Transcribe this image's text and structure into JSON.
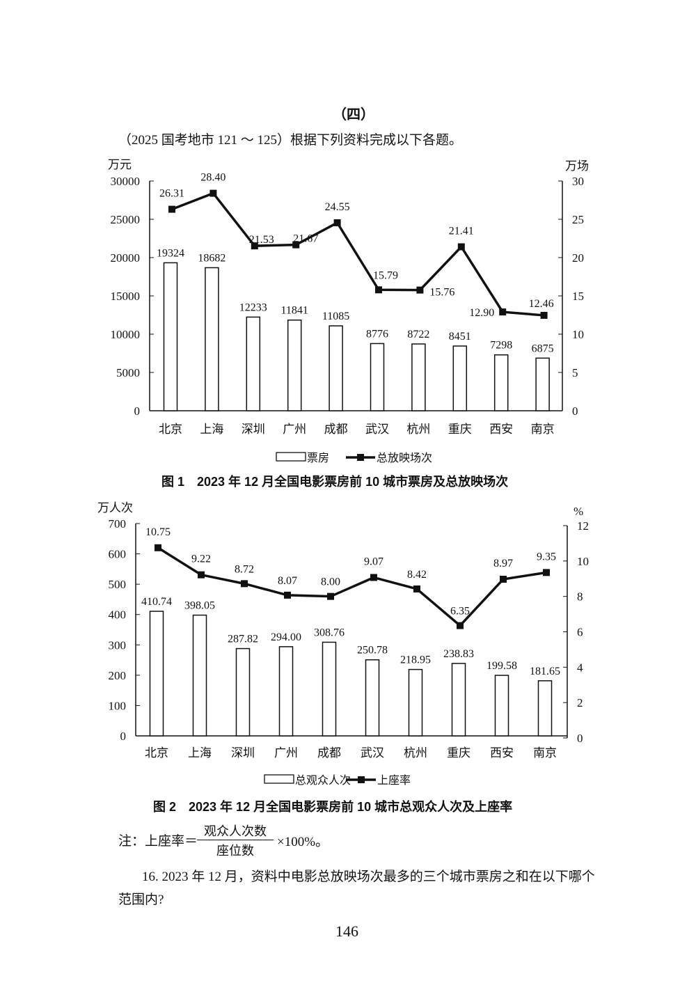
{
  "section_title": "（四）",
  "intro": "（2025 国考地市 121 ～ 125）根据下列资料完成以下各题。",
  "chart_data": [
    {
      "type": "bar+line",
      "title": "图 1　2023 年 12 月全国电影票房前 10 城市票房及总放映场次",
      "categories": [
        "北京",
        "上海",
        "深圳",
        "广州",
        "成都",
        "武汉",
        "杭州",
        "重庆",
        "西安",
        "南京"
      ],
      "y_left_unit": "万元",
      "y_right_unit": "万场",
      "ylim_left": [
        0,
        30000
      ],
      "yticks_left": [
        0,
        5000,
        10000,
        15000,
        20000,
        25000,
        30000
      ],
      "ylim_right": [
        0,
        30
      ],
      "yticks_right": [
        0,
        5,
        10,
        15,
        20,
        25,
        30
      ],
      "series": [
        {
          "name": "票房",
          "type": "bar",
          "axis": "left",
          "values": [
            19324,
            18682,
            12233,
            11841,
            11085,
            8776,
            8722,
            8451,
            7298,
            6875
          ],
          "labels": [
            "19324",
            "18682",
            "12233",
            "11841",
            "11085",
            "8776",
            "8722",
            "8451",
            "7298",
            "6875"
          ]
        },
        {
          "name": "总放映场次",
          "type": "line",
          "axis": "right",
          "values": [
            26.31,
            28.4,
            21.53,
            21.67,
            24.55,
            15.79,
            15.76,
            21.41,
            12.9,
            12.46
          ],
          "labels": [
            "26.31",
            "28.40",
            "21.53",
            "21.67",
            "24.55",
            "15.79",
            "15.76",
            "21.41",
            "12.90",
            "12.46"
          ]
        }
      ],
      "legend": "bottom",
      "grid": false
    },
    {
      "type": "bar+line",
      "title": "图 2　2023 年 12 月全国电影票房前 10 城市总观众人次及上座率",
      "categories": [
        "北京",
        "上海",
        "深圳",
        "广州",
        "成都",
        "武汉",
        "杭州",
        "重庆",
        "西安",
        "南京"
      ],
      "y_left_unit": "万人次",
      "y_right_unit": "%",
      "ylim_left": [
        0,
        700
      ],
      "yticks_left": [
        0,
        100,
        200,
        300,
        400,
        500,
        600,
        700
      ],
      "ylim_right": [
        0,
        12
      ],
      "yticks_right": [
        0,
        2,
        4,
        6,
        8,
        10,
        12
      ],
      "series": [
        {
          "name": "总观众人次",
          "type": "bar",
          "axis": "left",
          "values": [
            410.74,
            398.05,
            287.82,
            294.0,
            308.76,
            250.78,
            218.95,
            238.83,
            199.58,
            181.65
          ],
          "labels": [
            "410.74",
            "398.05",
            "287.82",
            "294.00",
            "308.76",
            "250.78",
            "218.95",
            "238.83",
            "199.58",
            "181.65"
          ]
        },
        {
          "name": "上座率",
          "type": "line",
          "axis": "right",
          "values": [
            10.75,
            9.22,
            8.72,
            8.07,
            8.0,
            9.07,
            8.42,
            6.35,
            8.97,
            9.35
          ],
          "labels": [
            "10.75",
            "9.22",
            "8.72",
            "8.07",
            "8.00",
            "9.07",
            "8.42",
            "6.35",
            "8.97",
            "9.35"
          ]
        }
      ],
      "legend": "bottom",
      "grid": false
    }
  ],
  "note": {
    "prefix": "注：上座率＝",
    "numerator": "观众人次数",
    "denominator": "座位数",
    "suffix": "×100%。"
  },
  "question": {
    "line1": "16. 2023 年 12 月，资料中电影总放映场次最多的三个城市票房之和在以下哪个",
    "line2": "范围内?"
  },
  "page_number": "146"
}
